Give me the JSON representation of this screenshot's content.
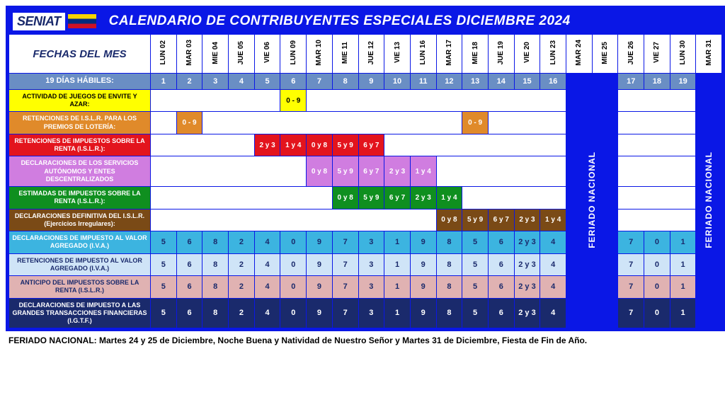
{
  "header": {
    "logo": "SENIAT",
    "title": "CALENDARIO DE CONTRIBUYENTES ESPECIALES DICIEMBRE 2024"
  },
  "colors": {
    "frame": "#0a17e6",
    "habiles_bg": "#6a8ec4",
    "yellow": "#ffff00",
    "orange": "#e08a2a",
    "red": "#e3141d",
    "violet": "#d07de0",
    "green": "#0f8f1f",
    "brown": "#7a4a16",
    "cyan": "#3cb4e0",
    "lightblue": "#cfe4f7",
    "rose": "#e0b2b2",
    "navy": "#1a2a6c",
    "white": "#ffffff"
  },
  "fechas_label": "FECHAS DEL MES",
  "days": [
    {
      "label": "LUN 02"
    },
    {
      "label": "MAR 03"
    },
    {
      "label": "MIE 04"
    },
    {
      "label": "JUE 05"
    },
    {
      "label": "VIE 06"
    },
    {
      "label": "LUN 09"
    },
    {
      "label": "MAR 10"
    },
    {
      "label": "MIE 11"
    },
    {
      "label": "JUE 12"
    },
    {
      "label": "VIE 13"
    },
    {
      "label": "LUN 16"
    },
    {
      "label": "MAR 17"
    },
    {
      "label": "MIE 18"
    },
    {
      "label": "JUE 19"
    },
    {
      "label": "VIE 20"
    },
    {
      "label": "LUN 23"
    },
    {
      "label": "MAR 24",
      "holiday": true
    },
    {
      "label": "MIE 25",
      "holiday": true
    },
    {
      "label": "JUE 26"
    },
    {
      "label": "VIE 27"
    },
    {
      "label": "LUN 30"
    },
    {
      "label": "MAR 31",
      "holiday": true
    }
  ],
  "habiles": {
    "label": "19 DÍAS HÁBILES:",
    "values": [
      "1",
      "2",
      "3",
      "4",
      "5",
      "6",
      "7",
      "8",
      "9",
      "10",
      "11",
      "12",
      "13",
      "14",
      "15",
      "16",
      "",
      "",
      "17",
      "18",
      "19",
      ""
    ]
  },
  "feriado_text": "FERIADO NACIONAL",
  "rows": [
    {
      "label": "ACTIVIDAD DE JUEGOS DE ENVITE Y AZAR:",
      "label_bg": "#ffff00",
      "label_fg": "#000000",
      "cells": [
        {
          "span": 5,
          "bg": "#ffffff",
          "text": ""
        },
        {
          "span": 1,
          "bg": "#ffff00",
          "text": "0 - 9"
        },
        {
          "span": 10,
          "bg": "#ffffff",
          "text": ""
        },
        {
          "span": 3,
          "bg": "#ffffff",
          "text": ""
        }
      ]
    },
    {
      "label": "RETENCIONES DE I.S.L.R. PARA LOS PREMIOS DE LOTERÍA:",
      "label_bg": "#e08a2a",
      "label_fg": "#ffffff",
      "cells": [
        {
          "span": 1,
          "bg": "#ffffff",
          "text": ""
        },
        {
          "span": 1,
          "bg": "#e08a2a",
          "text": "0 - 9",
          "fg": "#ffffff"
        },
        {
          "span": 10,
          "bg": "#ffffff",
          "text": ""
        },
        {
          "span": 1,
          "bg": "#e08a2a",
          "text": "0 - 9",
          "fg": "#ffffff"
        },
        {
          "span": 3,
          "bg": "#ffffff",
          "text": ""
        },
        {
          "span": 3,
          "bg": "#ffffff",
          "text": ""
        }
      ]
    },
    {
      "label": "RETENCIONES DE IMPUESTOS SOBRE LA RENTA (I.S.L.R.):",
      "label_bg": "#e3141d",
      "label_fg": "#ffffff",
      "cells": [
        {
          "span": 4,
          "bg": "#ffffff",
          "text": ""
        },
        {
          "span": 1,
          "bg": "#e3141d",
          "text": "2 y 3",
          "fg": "#ffffff"
        },
        {
          "span": 1,
          "bg": "#e3141d",
          "text": "1 y 4",
          "fg": "#ffffff"
        },
        {
          "span": 1,
          "bg": "#e3141d",
          "text": "0 y 8",
          "fg": "#ffffff"
        },
        {
          "span": 1,
          "bg": "#e3141d",
          "text": "5 y 9",
          "fg": "#ffffff"
        },
        {
          "span": 1,
          "bg": "#e3141d",
          "text": "6 y 7",
          "fg": "#ffffff"
        },
        {
          "span": 7,
          "bg": "#ffffff",
          "text": ""
        },
        {
          "span": 3,
          "bg": "#ffffff",
          "text": ""
        }
      ]
    },
    {
      "label": "DECLARACIONES DE LOS SERVICIOS AUTÓNOMOS Y ENTES DESCENTRALIZADOS",
      "label_bg": "#d07de0",
      "label_fg": "#ffffff",
      "cells": [
        {
          "span": 6,
          "bg": "#ffffff",
          "text": ""
        },
        {
          "span": 1,
          "bg": "#d07de0",
          "text": "0 y 8",
          "fg": "#ffffff"
        },
        {
          "span": 1,
          "bg": "#d07de0",
          "text": "5 y 9",
          "fg": "#ffffff"
        },
        {
          "span": 1,
          "bg": "#d07de0",
          "text": "6 y 7",
          "fg": "#ffffff"
        },
        {
          "span": 1,
          "bg": "#d07de0",
          "text": "2 y 3",
          "fg": "#ffffff"
        },
        {
          "span": 1,
          "bg": "#d07de0",
          "text": "1 y 4",
          "fg": "#ffffff"
        },
        {
          "span": 5,
          "bg": "#ffffff",
          "text": ""
        },
        {
          "span": 3,
          "bg": "#ffffff",
          "text": ""
        }
      ]
    },
    {
      "label": "ESTIMADAS DE IMPUESTOS SOBRE LA RENTA (I.S.L.R.):",
      "label_bg": "#0f8f1f",
      "label_fg": "#ffffff",
      "cells": [
        {
          "span": 7,
          "bg": "#ffffff",
          "text": ""
        },
        {
          "span": 1,
          "bg": "#0f8f1f",
          "text": "0 y 8",
          "fg": "#ffffff"
        },
        {
          "span": 1,
          "bg": "#0f8f1f",
          "text": "5 y 9",
          "fg": "#ffffff"
        },
        {
          "span": 1,
          "bg": "#0f8f1f",
          "text": "6 y 7",
          "fg": "#ffffff"
        },
        {
          "span": 1,
          "bg": "#0f8f1f",
          "text": "2 y 3",
          "fg": "#ffffff"
        },
        {
          "span": 1,
          "bg": "#0f8f1f",
          "text": "1 y 4",
          "fg": "#ffffff"
        },
        {
          "span": 4,
          "bg": "#ffffff",
          "text": ""
        },
        {
          "span": 3,
          "bg": "#ffffff",
          "text": ""
        }
      ]
    },
    {
      "label": "DECLARACIONES DEFINITIVA DEL I.S.L.R. (Ejercicios Irregulares):",
      "label_bg": "#7a4a16",
      "label_fg": "#ffffff",
      "cells": [
        {
          "span": 11,
          "bg": "#ffffff",
          "text": ""
        },
        {
          "span": 1,
          "bg": "#7a4a16",
          "text": "0 y 8",
          "fg": "#ffffff"
        },
        {
          "span": 1,
          "bg": "#7a4a16",
          "text": "5 y 9",
          "fg": "#ffffff"
        },
        {
          "span": 1,
          "bg": "#7a4a16",
          "text": "6 y 7",
          "fg": "#ffffff"
        },
        {
          "span": 1,
          "bg": "#7a4a16",
          "text": "2 y 3",
          "fg": "#ffffff"
        },
        {
          "span": 1,
          "bg": "#7a4a16",
          "text": "1 y 4",
          "fg": "#ffffff"
        },
        {
          "span": 3,
          "bg": "#ffffff",
          "text": ""
        }
      ]
    },
    {
      "label": "DECLARACIONES DE IMPUESTO AL VALOR AGREGADO (I.V.A.)",
      "label_bg": "#3cb4e0",
      "label_fg": "#ffffff",
      "seq_bg": "#3cb4e0",
      "seq_fg": "#1a2a6c",
      "seq": [
        "5",
        "6",
        "8",
        "2",
        "4",
        "0",
        "9",
        "7",
        "3",
        "1",
        "9",
        "8",
        "5",
        "6",
        "2 y 3",
        "4",
        "7",
        "0",
        "1"
      ]
    },
    {
      "label": "RETENCIONES DE IMPUESTO AL VALOR AGREGADO (I.V.A.)",
      "label_bg": "#cfe4f7",
      "label_fg": "#1a2a6c",
      "seq_bg": "#cfe4f7",
      "seq_fg": "#1a2a6c",
      "seq": [
        "5",
        "6",
        "8",
        "2",
        "4",
        "0",
        "9",
        "7",
        "3",
        "1",
        "9",
        "8",
        "5",
        "6",
        "2 y 3",
        "4",
        "7",
        "0",
        "1"
      ]
    },
    {
      "label": "ANTICIPO DEL IMPUESTOS SOBRE LA RENTA (I.S.L.R.)",
      "label_bg": "#e0b2b2",
      "label_fg": "#1a2a6c",
      "seq_bg": "#e0b2b2",
      "seq_fg": "#1a2a6c",
      "seq": [
        "5",
        "6",
        "8",
        "2",
        "4",
        "0",
        "9",
        "7",
        "3",
        "1",
        "9",
        "8",
        "5",
        "6",
        "2 y 3",
        "4",
        "7",
        "0",
        "1"
      ]
    },
    {
      "label": "DECLARACIONES DE IMPUESTO A LAS GRANDES TRANSACCIONES FINANCIERAS (I.G.T.F.)",
      "label_bg": "#1a2a6c",
      "label_fg": "#ffffff",
      "seq_bg": "#1a2a6c",
      "seq_fg": "#ffffff",
      "seq": [
        "5",
        "6",
        "8",
        "2",
        "4",
        "0",
        "9",
        "7",
        "3",
        "1",
        "9",
        "8",
        "5",
        "6",
        "2 y 3",
        "4",
        "7",
        "0",
        "1"
      ]
    }
  ],
  "footnote": "FERIADO NACIONAL: Martes 24 y 25 de Diciembre, Noche Buena y Natividad de Nuestro Señor y Martes 31 de Diciembre, Fiesta de Fin de Año."
}
